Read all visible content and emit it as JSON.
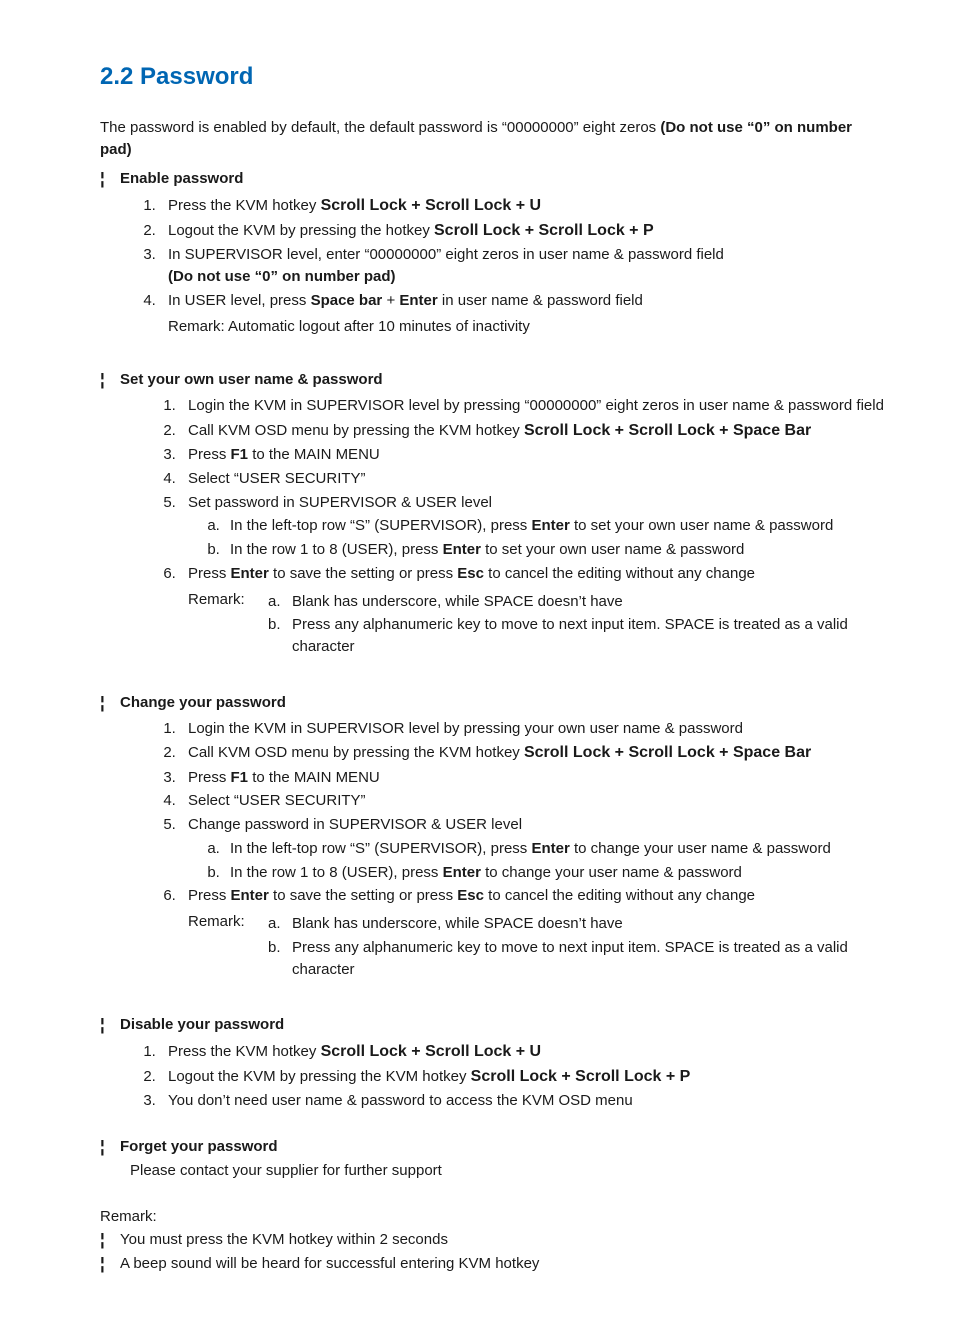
{
  "colors": {
    "heading": "#0066b3",
    "text": "#1a1a1a",
    "background": "#ffffff"
  },
  "heading": "2.2  Password",
  "intro_plain": "The password is enabled by default, the default password is “00000000”  eight zeros ",
  "intro_bold": "(Do not use “0” on number pad)",
  "s1": {
    "title": "Enable password",
    "i1_a": "Press the KVM hotkey ",
    "i1_b": "Scroll Lock + Scroll Lock + U",
    "i2_a": "Logout the KVM by pressing the hotkey ",
    "i2_b": "Scroll Lock + Scroll Lock + P",
    "i3_a": "In SUPERVISOR level, enter “00000000” eight zeros in user name & password field",
    "i3_b": "(Do not use “0” on number pad)",
    "i4_a": "In USER level, press ",
    "i4_b": "Space bar",
    "i4_c": " + ",
    "i4_d": "Enter",
    "i4_e": " in user name & password field",
    "i4_remark": "Remark:  Automatic logout after 10 minutes of inactivity"
  },
  "s2": {
    "title": "Set your own user name & password",
    "i1": "Login the KVM in SUPERVISOR level by pressing “00000000” eight zeros in user name & password field",
    "i2_a": "Call KVM OSD menu by pressing the KVM hotkey ",
    "i2_b": "Scroll Lock + Scroll Lock + Space Bar",
    "i3_a": "Press ",
    "i3_b": "F1",
    "i3_c": " to the MAIN MENU",
    "i4": "Select “USER SECURITY”",
    "i5": "Set password in SUPERVISOR & USER level",
    "i5a_a": "In the left-top row “S” (SUPERVISOR), press ",
    "i5a_b": "Enter",
    "i5a_c": " to set your own user name & password",
    "i5b_a": "In the row 1 to 8 (USER), press ",
    "i5b_b": "Enter",
    "i5b_c": " to set your own user name & password",
    "i6_a": "Press ",
    "i6_b": "Enter",
    "i6_c": " to save the setting or press ",
    "i6_d": "Esc",
    "i6_e": " to cancel the editing without any change",
    "remark_label": "Remark:",
    "ra": "Blank has underscore, while SPACE doesn’t have",
    "rb": "Press any alphanumeric key to move to next input item. SPACE is treated as a valid character"
  },
  "s3": {
    "title": "Change your password",
    "i1": "Login the KVM in SUPERVISOR level by pressing your own user name & password",
    "i2_a": "Call KVM OSD menu by pressing the KVM hotkey ",
    "i2_b": "Scroll Lock + Scroll Lock + Space Bar",
    "i3_a": "Press ",
    "i3_b": "F1",
    "i3_c": " to the MAIN MENU",
    "i4": "Select “USER SECURITY”",
    "i5": "Change password in SUPERVISOR & USER level",
    "i5a_a": "In the left-top row “S” (SUPERVISOR), press ",
    "i5a_b": "Enter",
    "i5a_c": " to change your user name & password",
    "i5b_a": "In the row 1 to 8 (USER), press ",
    "i5b_b": "Enter",
    "i5b_c": " to change your user name & password",
    "i6_a": "Press ",
    "i6_b": "Enter",
    "i6_c": " to save the setting or press ",
    "i6_d": "Esc",
    "i6_e": " to cancel the editing without any change",
    "remark_label": "Remark:",
    "ra": "Blank has underscore, while SPACE doesn’t have",
    "rb": "Press any alphanumeric key to move to next input item. SPACE is treated as a valid character"
  },
  "s4": {
    "title": "Disable your password",
    "i1_a": "Press the KVM hotkey ",
    "i1_b": "Scroll Lock + Scroll Lock + U",
    "i2_a": "Logout the KVM by pressing the KVM hotkey ",
    "i2_b": "Scroll Lock + Scroll Lock + P",
    "i3": "You don’t need user name & password to access the KVM OSD menu"
  },
  "s5": {
    "title": "Forget your password",
    "text": "Please contact your supplier for further support"
  },
  "footer": {
    "label": "Remark:",
    "r1": "You must press the KVM hotkey within 2 seconds",
    "r2": "A beep sound will be heard for successful entering KVM hotkey"
  }
}
